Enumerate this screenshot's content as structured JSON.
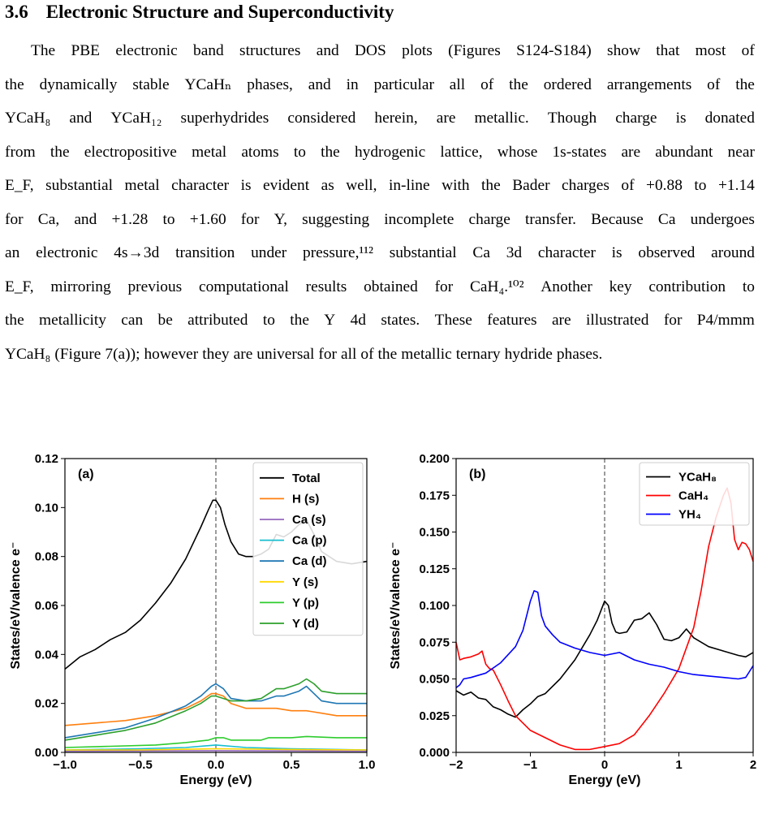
{
  "section": {
    "number": "3.6",
    "title": "Electronic Structure and Superconductivity"
  },
  "paragraph_lines": [
    "The PBE electronic band structures and DOS plots (Figures S124-S184) show that most of",
    "the dynamically stable YCaHₙ phases, and in particular all of the ordered arrangements of the",
    "YCaH₈ and YCaH₁₂ superhydrides considered herein, are metallic. Though charge is donated",
    "from the electropositive metal atoms to the hydrogenic lattice, whose 1s-states are abundant near",
    "E_F, substantial metal character is evident as well, in-line with the Bader charges of +0.88 to +1.14",
    "for Ca, and +1.28 to +1.60 for Y, suggesting incomplete charge transfer. Because Ca undergoes",
    "an electronic 4s→3d transition under pressure,¹¹² substantial Ca 3d character is observed around",
    "E_F, mirroring previous computational results obtained for CaH₄.¹⁰² Another key contribution to",
    "the metallicity can be attributed to the Y 4d states. These features are illustrated for P4/mmm",
    "YCaH₈ (Figure 7(a)); however they are universal for all of the metallic ternary hydride phases."
  ],
  "chart_data": [
    {
      "type": "line",
      "panel_label": "(a)",
      "xlabel": "Energy (eV)",
      "ylabel": "States/eV/valence e⁻",
      "xlim": [
        -1.0,
        1.0
      ],
      "ylim": [
        0.0,
        0.12
      ],
      "xticks": [
        "−1.0",
        "−0.5",
        "0.0",
        "0.5",
        "1.0"
      ],
      "xtick_values": [
        -1.0,
        -0.5,
        0.0,
        0.5,
        1.0
      ],
      "yticks": [
        "0.00",
        "0.02",
        "0.04",
        "0.06",
        "0.08",
        "0.10",
        "0.12"
      ],
      "ytick_values": [
        0.0,
        0.02,
        0.04,
        0.06,
        0.08,
        0.1,
        0.12
      ],
      "fermi_line_x": 0.0,
      "legend_position": "top-right",
      "series": [
        {
          "name": "Total",
          "color": "#000000",
          "x": [
            -1.0,
            -0.9,
            -0.8,
            -0.7,
            -0.6,
            -0.5,
            -0.4,
            -0.3,
            -0.2,
            -0.1,
            -0.05,
            -0.02,
            0.0,
            0.03,
            0.06,
            0.1,
            0.15,
            0.2,
            0.25,
            0.3,
            0.35,
            0.4,
            0.45,
            0.5,
            0.55,
            0.6,
            0.65,
            0.7,
            0.8,
            0.9,
            1.0
          ],
          "y": [
            0.034,
            0.039,
            0.042,
            0.046,
            0.049,
            0.054,
            0.061,
            0.069,
            0.079,
            0.092,
            0.099,
            0.103,
            0.103,
            0.1,
            0.093,
            0.086,
            0.081,
            0.08,
            0.08,
            0.081,
            0.083,
            0.089,
            0.088,
            0.09,
            0.093,
            0.095,
            0.089,
            0.082,
            0.078,
            0.077,
            0.078
          ]
        },
        {
          "name": "H (s)",
          "color": "#ff7f0e",
          "x": [
            -1.0,
            -0.8,
            -0.6,
            -0.4,
            -0.2,
            -0.1,
            -0.03,
            0.0,
            0.05,
            0.1,
            0.2,
            0.3,
            0.4,
            0.5,
            0.6,
            0.7,
            0.8,
            1.0
          ],
          "y": [
            0.011,
            0.012,
            0.013,
            0.015,
            0.018,
            0.021,
            0.024,
            0.024,
            0.023,
            0.02,
            0.018,
            0.018,
            0.018,
            0.017,
            0.017,
            0.016,
            0.015,
            0.015
          ]
        },
        {
          "name": "Ca (s)",
          "color": "#9467bd",
          "x": [
            -1.0,
            -0.5,
            0.0,
            0.5,
            1.0
          ],
          "y": [
            0.0005,
            0.0006,
            0.0007,
            0.0006,
            0.0005
          ]
        },
        {
          "name": "Ca (p)",
          "color": "#17becf",
          "x": [
            -1.0,
            -0.5,
            -0.2,
            0.0,
            0.2,
            0.5,
            1.0
          ],
          "y": [
            0.001,
            0.0015,
            0.002,
            0.003,
            0.002,
            0.0015,
            0.001
          ]
        },
        {
          "name": "Ca (d)",
          "color": "#1f77b4",
          "x": [
            -1.0,
            -0.8,
            -0.6,
            -0.4,
            -0.2,
            -0.1,
            -0.03,
            0.0,
            0.05,
            0.1,
            0.2,
            0.3,
            0.35,
            0.4,
            0.45,
            0.5,
            0.55,
            0.6,
            0.65,
            0.7,
            0.8,
            1.0
          ],
          "y": [
            0.006,
            0.008,
            0.01,
            0.014,
            0.019,
            0.023,
            0.027,
            0.028,
            0.026,
            0.022,
            0.021,
            0.021,
            0.022,
            0.023,
            0.023,
            0.024,
            0.025,
            0.027,
            0.024,
            0.021,
            0.02,
            0.02
          ]
        },
        {
          "name": "Y (s)",
          "color": "#ffd700",
          "x": [
            -1.0,
            -0.5,
            0.0,
            0.5,
            1.0
          ],
          "y": [
            0.001,
            0.001,
            0.0015,
            0.0012,
            0.001
          ]
        },
        {
          "name": "Y (p)",
          "color": "#2ecc2e",
          "x": [
            -1.0,
            -0.7,
            -0.4,
            -0.2,
            -0.05,
            0.0,
            0.05,
            0.1,
            0.3,
            0.35,
            0.5,
            0.6,
            0.8,
            1.0
          ],
          "y": [
            0.002,
            0.0025,
            0.003,
            0.004,
            0.005,
            0.006,
            0.006,
            0.005,
            0.005,
            0.006,
            0.006,
            0.0065,
            0.006,
            0.006
          ]
        },
        {
          "name": "Y (d)",
          "color": "#2ca02c",
          "x": [
            -1.0,
            -0.8,
            -0.6,
            -0.4,
            -0.2,
            -0.1,
            -0.03,
            0.0,
            0.05,
            0.1,
            0.2,
            0.3,
            0.35,
            0.4,
            0.45,
            0.5,
            0.55,
            0.6,
            0.65,
            0.7,
            0.8,
            1.0
          ],
          "y": [
            0.005,
            0.007,
            0.009,
            0.012,
            0.017,
            0.02,
            0.023,
            0.023,
            0.022,
            0.021,
            0.021,
            0.022,
            0.024,
            0.026,
            0.026,
            0.027,
            0.028,
            0.03,
            0.028,
            0.025,
            0.024,
            0.024
          ]
        }
      ]
    },
    {
      "type": "line",
      "panel_label": "(b)",
      "xlabel": "Energy (eV)",
      "ylabel": "States/eV/valence e⁻",
      "xlim": [
        -2,
        2
      ],
      "ylim": [
        0.0,
        0.2
      ],
      "xticks": [
        "−2",
        "−1",
        "0",
        "1",
        "2"
      ],
      "xtick_values": [
        -2,
        -1,
        0,
        1,
        2
      ],
      "yticks": [
        "0.000",
        "0.025",
        "0.050",
        "0.075",
        "0.100",
        "0.125",
        "0.150",
        "0.175",
        "0.200"
      ],
      "ytick_values": [
        0.0,
        0.025,
        0.05,
        0.075,
        0.1,
        0.125,
        0.15,
        0.175,
        0.2
      ],
      "fermi_line_x": 0.0,
      "legend_position": "top-right",
      "series": [
        {
          "name": "YCaH₈",
          "color": "#000000",
          "x": [
            -2.0,
            -1.9,
            -1.8,
            -1.7,
            -1.6,
            -1.5,
            -1.4,
            -1.3,
            -1.2,
            -1.1,
            -1.0,
            -0.9,
            -0.8,
            -0.6,
            -0.4,
            -0.2,
            -0.1,
            0.0,
            0.05,
            0.1,
            0.15,
            0.2,
            0.3,
            0.4,
            0.5,
            0.6,
            0.7,
            0.8,
            0.9,
            1.0,
            1.1,
            1.2,
            1.4,
            1.6,
            1.8,
            1.9,
            2.0
          ],
          "y": [
            0.042,
            0.039,
            0.041,
            0.037,
            0.036,
            0.031,
            0.029,
            0.026,
            0.024,
            0.029,
            0.033,
            0.038,
            0.04,
            0.05,
            0.063,
            0.08,
            0.09,
            0.103,
            0.1,
            0.088,
            0.082,
            0.081,
            0.082,
            0.09,
            0.091,
            0.095,
            0.087,
            0.077,
            0.076,
            0.078,
            0.084,
            0.078,
            0.072,
            0.069,
            0.066,
            0.065,
            0.068
          ]
        },
        {
          "name": "CaH₄",
          "color": "#ff0000",
          "x": [
            -2.0,
            -1.95,
            -1.9,
            -1.8,
            -1.7,
            -1.65,
            -1.6,
            -1.55,
            -1.5,
            -1.4,
            -1.3,
            -1.2,
            -1.0,
            -0.8,
            -0.6,
            -0.4,
            -0.2,
            0.0,
            0.2,
            0.4,
            0.6,
            0.8,
            1.0,
            1.2,
            1.3,
            1.4,
            1.5,
            1.6,
            1.65,
            1.7,
            1.75,
            1.8,
            1.85,
            1.9,
            1.95,
            2.0
          ],
          "y": [
            0.075,
            0.063,
            0.064,
            0.065,
            0.067,
            0.069,
            0.06,
            0.057,
            0.056,
            0.046,
            0.035,
            0.025,
            0.015,
            0.01,
            0.005,
            0.002,
            0.002,
            0.004,
            0.006,
            0.012,
            0.025,
            0.04,
            0.057,
            0.085,
            0.11,
            0.14,
            0.16,
            0.175,
            0.18,
            0.17,
            0.145,
            0.138,
            0.143,
            0.142,
            0.138,
            0.13
          ]
        },
        {
          "name": "YH₄",
          "color": "#0000ff",
          "x": [
            -2.0,
            -1.95,
            -1.9,
            -1.8,
            -1.6,
            -1.4,
            -1.2,
            -1.1,
            -1.0,
            -0.95,
            -0.9,
            -0.85,
            -0.8,
            -0.7,
            -0.6,
            -0.4,
            -0.2,
            0.0,
            0.2,
            0.4,
            0.6,
            0.8,
            1.0,
            1.2,
            1.4,
            1.6,
            1.8,
            1.9,
            1.95,
            2.0
          ],
          "y": [
            0.044,
            0.046,
            0.05,
            0.051,
            0.054,
            0.061,
            0.072,
            0.083,
            0.103,
            0.11,
            0.109,
            0.093,
            0.086,
            0.08,
            0.075,
            0.071,
            0.068,
            0.066,
            0.068,
            0.063,
            0.06,
            0.058,
            0.055,
            0.053,
            0.052,
            0.051,
            0.05,
            0.051,
            0.055,
            0.059
          ]
        }
      ]
    }
  ]
}
